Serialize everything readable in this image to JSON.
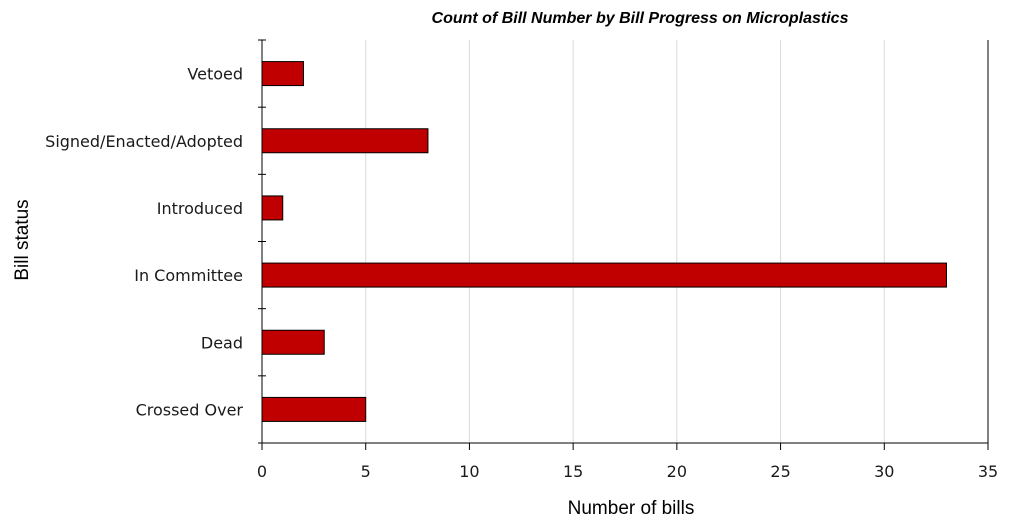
{
  "chart_data": {
    "type": "bar",
    "orientation": "horizontal",
    "title": "Count of Bill Number by Bill Progress on Microplastics",
    "xlabel": "Number of bills",
    "ylabel": "Bill status",
    "categories": [
      "Crossed Over",
      "Dead",
      "In Committee",
      "Introduced",
      "Signed/Enacted/Adopted",
      "Vetoed"
    ],
    "values": [
      5,
      3,
      33,
      1,
      8,
      2
    ],
    "xlim": [
      0,
      35
    ],
    "xticks": [
      "0",
      "5",
      "10",
      "15",
      "20",
      "25",
      "30",
      "35"
    ],
    "grid": "vertical",
    "legend": "none",
    "bar_color": "#c00000"
  }
}
